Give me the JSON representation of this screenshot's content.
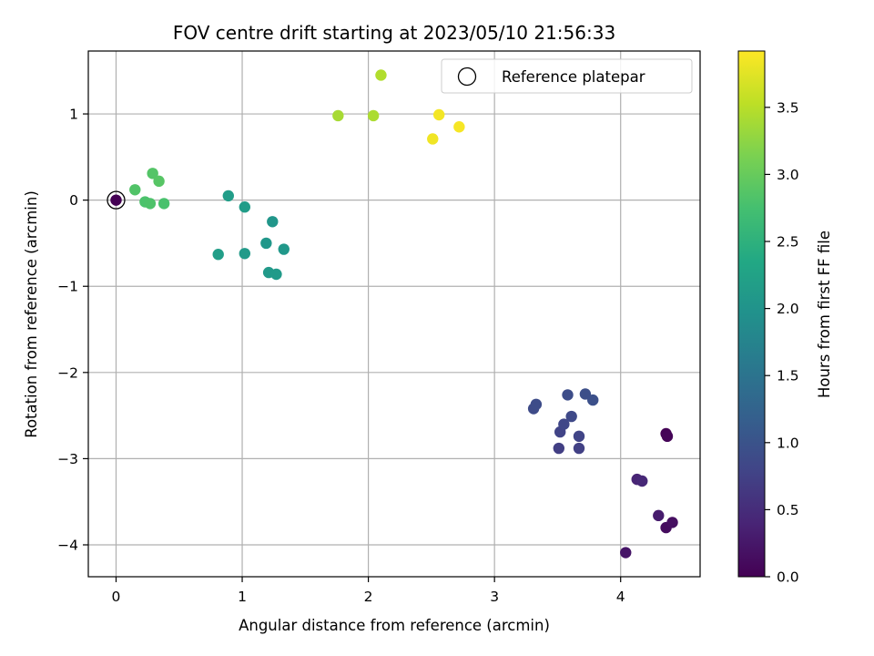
{
  "chart_data": {
    "type": "scatter",
    "title": "FOV centre drift starting at 2023/05/10 21:56:33",
    "xlabel": "Angular distance from reference (arcmin)",
    "ylabel": "Rotation from reference (arcmin)",
    "colorbar_label": "Hours from first FF file",
    "xlim": [
      -0.22,
      4.63
    ],
    "ylim": [
      -4.37,
      1.73
    ],
    "clim": [
      0,
      3.92
    ],
    "x_ticks": [
      0,
      1,
      2,
      3,
      4
    ],
    "x_tick_labels": [
      "0",
      "1",
      "2",
      "3",
      "4"
    ],
    "y_ticks": [
      1,
      0,
      -1,
      -2,
      -3,
      -4
    ],
    "y_tick_labels": [
      "1",
      "0",
      "−1",
      "−2",
      "−3",
      "−4"
    ],
    "colorbar_ticks": [
      0,
      0.5,
      1,
      1.5,
      2,
      2.5,
      3,
      3.5
    ],
    "colorbar_tick_labels": [
      "0.0",
      "0.5",
      "1.0",
      "1.5",
      "2.0",
      "2.5",
      "3.0",
      "3.5"
    ],
    "colormap": "viridis",
    "grid": true,
    "legend": {
      "placement": "top-right",
      "entries": [
        "Reference platepar"
      ]
    },
    "reference_point": {
      "x": 0,
      "y": 0
    },
    "points": [
      {
        "x": 0.0,
        "y": 0.0,
        "h": 0.0
      },
      {
        "x": 4.36,
        "y": -2.71,
        "h": 0.02
      },
      {
        "x": 4.37,
        "y": -2.74,
        "h": 0.05
      },
      {
        "x": 4.36,
        "y": -3.8,
        "h": 0.12
      },
      {
        "x": 4.41,
        "y": -3.74,
        "h": 0.16
      },
      {
        "x": 4.04,
        "y": -4.09,
        "h": 0.22
      },
      {
        "x": 4.3,
        "y": -3.66,
        "h": 0.3
      },
      {
        "x": 4.13,
        "y": -3.24,
        "h": 0.4
      },
      {
        "x": 4.17,
        "y": -3.26,
        "h": 0.44
      },
      {
        "x": 3.51,
        "y": -2.88,
        "h": 0.72
      },
      {
        "x": 3.67,
        "y": -2.88,
        "h": 0.75
      },
      {
        "x": 3.52,
        "y": -2.69,
        "h": 0.78
      },
      {
        "x": 3.67,
        "y": -2.74,
        "h": 0.8
      },
      {
        "x": 3.55,
        "y": -2.6,
        "h": 0.83
      },
      {
        "x": 3.61,
        "y": -2.51,
        "h": 0.86
      },
      {
        "x": 3.31,
        "y": -2.42,
        "h": 0.88
      },
      {
        "x": 3.33,
        "y": -2.37,
        "h": 0.9
      },
      {
        "x": 3.58,
        "y": -2.26,
        "h": 0.92
      },
      {
        "x": 3.72,
        "y": -2.25,
        "h": 0.94
      },
      {
        "x": 3.78,
        "y": -2.32,
        "h": 0.96
      },
      {
        "x": 1.24,
        "y": -0.25,
        "h": 2.05
      },
      {
        "x": 1.19,
        "y": -0.5,
        "h": 2.06
      },
      {
        "x": 1.33,
        "y": -0.57,
        "h": 2.08
      },
      {
        "x": 1.21,
        "y": -0.84,
        "h": 2.1
      },
      {
        "x": 1.27,
        "y": -0.86,
        "h": 2.11
      },
      {
        "x": 1.02,
        "y": -0.62,
        "h": 2.12
      },
      {
        "x": 1.02,
        "y": -0.08,
        "h": 2.14
      },
      {
        "x": 0.89,
        "y": 0.05,
        "h": 2.16
      },
      {
        "x": 0.81,
        "y": -0.63,
        "h": 2.18
      },
      {
        "x": 0.38,
        "y": -0.04,
        "h": 2.78
      },
      {
        "x": 0.23,
        "y": -0.02,
        "h": 2.8
      },
      {
        "x": 0.27,
        "y": -0.04,
        "h": 2.82
      },
      {
        "x": 0.15,
        "y": 0.12,
        "h": 2.84
      },
      {
        "x": 0.29,
        "y": 0.31,
        "h": 2.86
      },
      {
        "x": 0.34,
        "y": 0.22,
        "h": 2.88
      },
      {
        "x": 1.76,
        "y": 0.98,
        "h": 3.4
      },
      {
        "x": 2.04,
        "y": 0.98,
        "h": 3.43
      },
      {
        "x": 2.1,
        "y": 1.45,
        "h": 3.46
      },
      {
        "x": 2.51,
        "y": 0.71,
        "h": 3.84
      },
      {
        "x": 2.56,
        "y": 0.99,
        "h": 3.86
      },
      {
        "x": 2.72,
        "y": 0.85,
        "h": 3.88
      }
    ]
  }
}
